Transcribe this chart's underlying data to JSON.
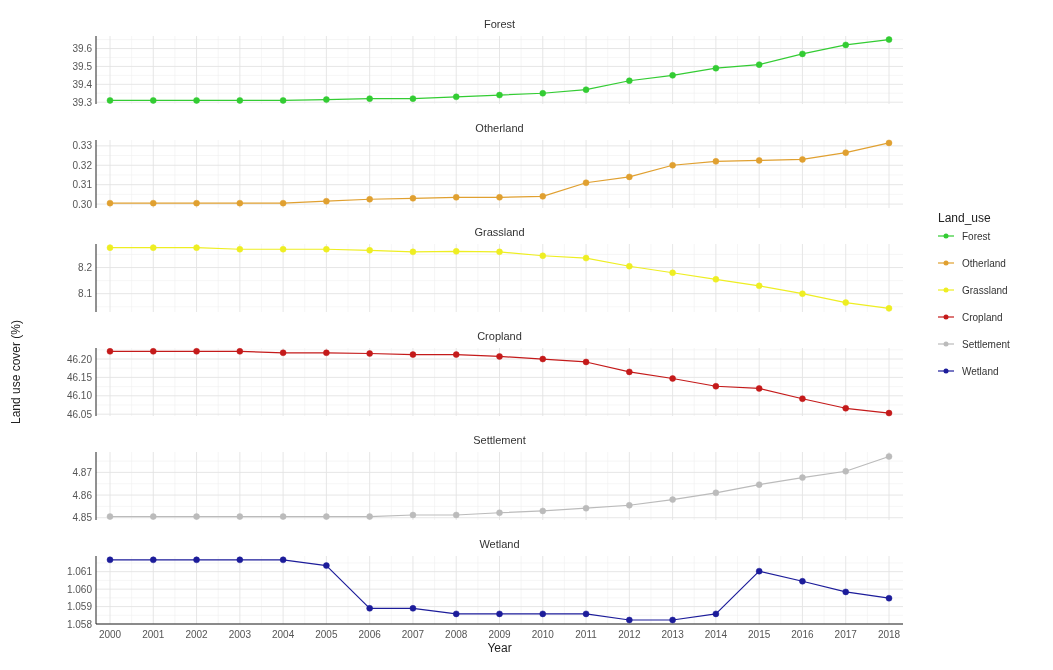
{
  "chart_data": [
    {
      "type": "line",
      "title": "Forest",
      "legend_title": "Land_use",
      "categories": [
        "2000",
        "2001",
        "2002",
        "2003",
        "2004",
        "2005",
        "2006",
        "2007",
        "2008",
        "2009",
        "2010",
        "2011",
        "2012",
        "2013",
        "2014",
        "2015",
        "2016",
        "2017",
        "2018"
      ],
      "series": [
        {
          "name": "Forest",
          "color": "#33cc33",
          "values": [
            39.31,
            39.31,
            39.31,
            39.31,
            39.31,
            39.315,
            39.32,
            39.32,
            39.33,
            39.34,
            39.35,
            39.37,
            39.42,
            39.45,
            39.49,
            39.51,
            39.57,
            39.62,
            39.65
          ]
        }
      ],
      "ylim": [
        39.29,
        39.67
      ],
      "yticks": [
        39.3,
        39.4,
        39.5,
        39.6
      ],
      "grid": true,
      "legend": "right",
      "marker": "circle",
      "tick_labels": "y"
    },
    {
      "type": "line",
      "title": "Otherland",
      "categories": [
        "2000",
        "2001",
        "2002",
        "2003",
        "2004",
        "2005",
        "2006",
        "2007",
        "2008",
        "2009",
        "2010",
        "2011",
        "2012",
        "2013",
        "2014",
        "2015",
        "2016",
        "2017",
        "2018"
      ],
      "series": [
        {
          "name": "Otherland",
          "color": "#e0a030",
          "values": [
            0.3005,
            0.3005,
            0.3005,
            0.3005,
            0.3005,
            0.3015,
            0.3025,
            0.303,
            0.3035,
            0.3035,
            0.304,
            0.311,
            0.314,
            0.32,
            0.322,
            0.3225,
            0.323,
            0.3265,
            0.3315
          ]
        }
      ],
      "ylim": [
        0.298,
        0.333
      ],
      "yticks": [
        {
          "value": 0.3,
          "label": "0.30"
        },
        0.31,
        0.32,
        0.33
      ],
      "grid": true,
      "legend": "right",
      "marker": "circle",
      "tick_labels": "y"
    },
    {
      "type": "line",
      "title": "Grassland",
      "categories": [
        "2000",
        "2001",
        "2002",
        "2003",
        "2004",
        "2005",
        "2006",
        "2007",
        "2008",
        "2009",
        "2010",
        "2011",
        "2012",
        "2013",
        "2014",
        "2015",
        "2016",
        "2017",
        "2018"
      ],
      "series": [
        {
          "name": "Grassland",
          "color": "#eeee22",
          "values": [
            8.276,
            8.276,
            8.276,
            8.27,
            8.27,
            8.27,
            8.266,
            8.26,
            8.262,
            8.26,
            8.245,
            8.236,
            8.205,
            8.18,
            8.155,
            8.13,
            8.1,
            8.066,
            8.044
          ]
        }
      ],
      "ylim": [
        8.03,
        8.29
      ],
      "yticks": [
        8.1,
        8.2
      ],
      "grid": true,
      "legend": "right",
      "marker": "circle",
      "tick_labels": "y"
    },
    {
      "type": "line",
      "title": "Cropland",
      "ylabel": "Land use cover (%)",
      "categories": [
        "2000",
        "2001",
        "2002",
        "2003",
        "2004",
        "2005",
        "2006",
        "2007",
        "2008",
        "2009",
        "2010",
        "2011",
        "2012",
        "2013",
        "2014",
        "2015",
        "2016",
        "2017",
        "2018"
      ],
      "series": [
        {
          "name": "Cropland",
          "color": "#c41a1a",
          "values": [
            46.221,
            46.221,
            46.221,
            46.221,
            46.217,
            46.217,
            46.215,
            46.212,
            46.212,
            46.207,
            46.2,
            46.192,
            46.165,
            46.147,
            46.126,
            46.12,
            46.092,
            46.066,
            46.053
          ]
        }
      ],
      "ylim": [
        46.045,
        46.23
      ],
      "yticks": [
        46.05,
        {
          "value": 46.1,
          "label": "46.10"
        },
        46.15,
        {
          "value": 46.2,
          "label": "46.20"
        }
      ],
      "grid": true,
      "legend": "right",
      "marker": "circle",
      "tick_labels": "y"
    },
    {
      "type": "line",
      "title": "Settlement",
      "categories": [
        "2000",
        "2001",
        "2002",
        "2003",
        "2004",
        "2005",
        "2006",
        "2007",
        "2008",
        "2009",
        "2010",
        "2011",
        "2012",
        "2013",
        "2014",
        "2015",
        "2016",
        "2017",
        "2018"
      ],
      "series": [
        {
          "name": "Settlement",
          "color": "#bbbbbb",
          "values": [
            4.8505,
            4.8505,
            4.8505,
            4.8505,
            4.8505,
            4.8505,
            4.8505,
            4.8512,
            4.8512,
            4.8522,
            4.853,
            4.8542,
            4.8555,
            4.858,
            4.861,
            4.8646,
            4.8677,
            4.8705,
            4.877
          ]
        }
      ],
      "ylim": [
        4.849,
        4.879
      ],
      "yticks": [
        4.85,
        4.86,
        4.87
      ],
      "grid": true,
      "legend": "right",
      "marker": "circle",
      "tick_labels": "y"
    },
    {
      "type": "line",
      "title": "Wetland",
      "xlabel": "Year",
      "categories": [
        "2000",
        "2001",
        "2002",
        "2003",
        "2004",
        "2005",
        "2006",
        "2007",
        "2008",
        "2009",
        "2010",
        "2011",
        "2012",
        "2013",
        "2014",
        "2015",
        "2016",
        "2017",
        "2018"
      ],
      "series": [
        {
          "name": "Wetland",
          "color": "#1c1c9a",
          "values": [
            1.06168,
            1.06168,
            1.06168,
            1.06168,
            1.06168,
            1.06135,
            1.0589,
            1.0589,
            1.05858,
            1.05858,
            1.05858,
            1.05858,
            1.05823,
            1.05823,
            1.05858,
            1.06103,
            1.06045,
            1.05984,
            1.05948
          ]
        }
      ],
      "ylim": [
        1.058,
        1.0619
      ],
      "yticks": [
        1.058,
        1.059,
        {
          "value": 1.06,
          "label": "1.060"
        },
        1.061
      ],
      "grid": true,
      "legend": "right",
      "marker": "circle"
    }
  ]
}
